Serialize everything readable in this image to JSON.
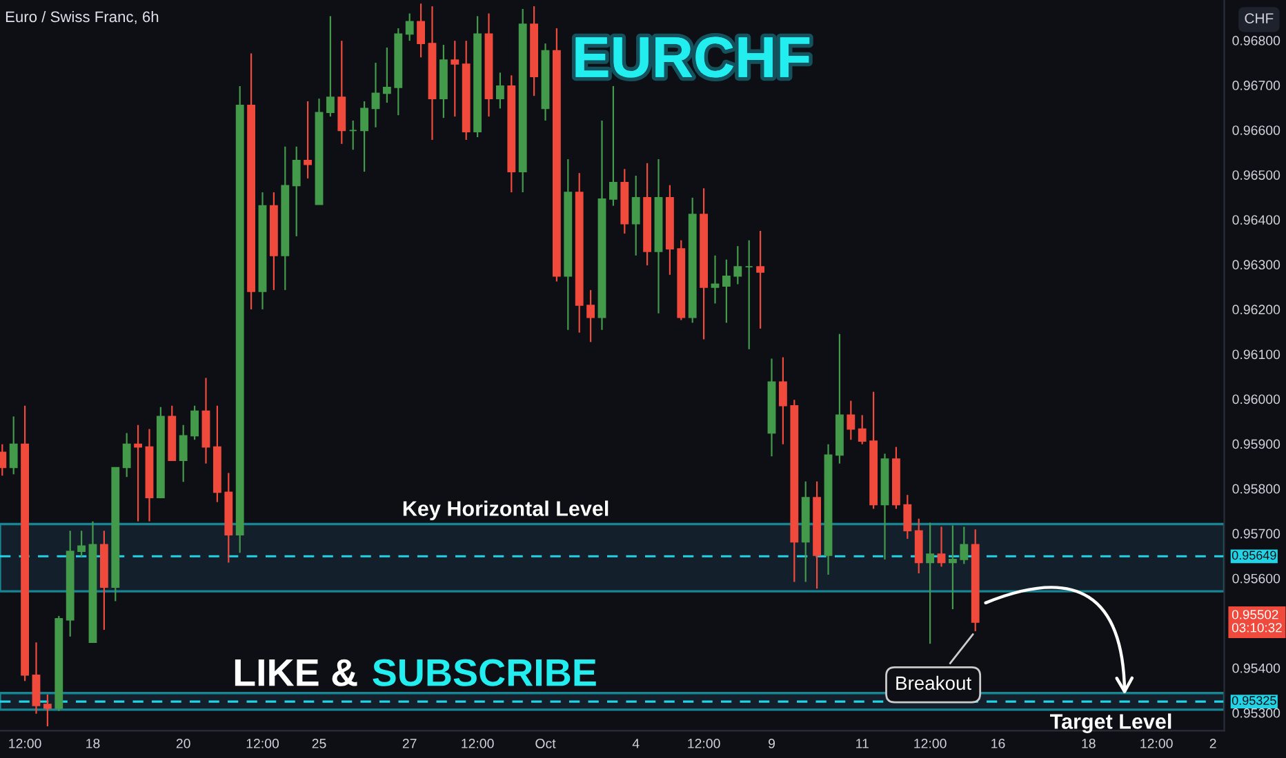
{
  "chart_data": {
    "type": "candlestick",
    "title": "EURCHF",
    "subtitle": "Euro / Swiss Franc, 6h",
    "categories": [
      null,
      null,
      "12:00",
      null,
      null,
      null,
      null,
      null,
      "18",
      null,
      null,
      null,
      null,
      null,
      null,
      null,
      "20",
      null,
      null,
      null,
      null,
      null,
      null,
      "12:00",
      null,
      null,
      null,
      null,
      "25",
      null,
      null,
      null,
      null,
      null,
      null,
      null,
      "27",
      null,
      null,
      null,
      null,
      null,
      "12:00",
      null,
      null,
      null,
      null,
      null,
      "Oct",
      null,
      null,
      null,
      null,
      null,
      null,
      null,
      "4",
      null,
      null,
      null,
      null,
      null,
      "12:00",
      null,
      null,
      null,
      null,
      null,
      "9",
      null,
      null,
      null,
      null,
      null,
      null,
      null,
      "11",
      null,
      null,
      null,
      null,
      null,
      "12:00",
      null,
      null,
      null,
      null,
      null,
      "16",
      null,
      null,
      null,
      null,
      null,
      null,
      null,
      "18",
      null,
      null,
      null,
      null,
      null,
      "12:00",
      null,
      null,
      null,
      null,
      "2",
      null
    ],
    "ohlc": [
      [
        0.95881,
        0.95899,
        0.95829,
        0.95847
      ],
      [
        0.95847,
        0.95961,
        0.95832,
        0.95899
      ],
      [
        0.95899,
        0.95985,
        0.95371,
        0.95384
      ],
      [
        0.95384,
        0.95457,
        0.95298,
        0.95316
      ],
      [
        0.95319,
        0.95341,
        0.9527,
        0.9531
      ],
      [
        0.9531,
        0.95516,
        0.95304,
        0.9551
      ],
      [
        0.95507,
        0.95706,
        0.9547,
        0.9566
      ],
      [
        0.9566,
        0.95706,
        0.95648,
        0.95672
      ],
      [
        0.95457,
        0.95727,
        0.95457,
        0.95675
      ],
      [
        0.95675,
        0.95706,
        0.95485,
        0.9558
      ],
      [
        0.9558,
        0.95847,
        0.95549,
        0.95847
      ],
      [
        0.95847,
        0.95924,
        0.95826,
        0.95899
      ],
      [
        0.95899,
        0.95942,
        0.95727,
        0.95893
      ],
      [
        0.95893,
        0.95933,
        0.95727,
        0.9578
      ],
      [
        0.9578,
        0.95982,
        0.9578,
        0.95961
      ],
      [
        0.95961,
        0.95985,
        0.95863,
        0.95863
      ],
      [
        0.95863,
        0.95942,
        0.95815,
        0.95918
      ],
      [
        0.95918,
        0.95985,
        0.95909,
        0.95973
      ],
      [
        0.95973,
        0.96047,
        0.95856,
        0.95893
      ],
      [
        0.95893,
        0.95985,
        0.9577,
        0.95792
      ],
      [
        0.95792,
        0.95835,
        0.95635,
        0.95697
      ],
      [
        0.95697,
        0.96698,
        0.95657,
        0.96655
      ],
      [
        0.96655,
        0.96771,
        0.962,
        0.9624
      ],
      [
        0.9624,
        0.96461,
        0.962,
        0.96431
      ],
      [
        0.96431,
        0.96461,
        0.96243,
        0.9632
      ],
      [
        0.9632,
        0.96563,
        0.96243,
        0.96476
      ],
      [
        0.96476,
        0.96563,
        0.96363,
        0.96532
      ],
      [
        0.96532,
        0.96664,
        0.96492,
        0.96523
      ],
      [
        0.96434,
        0.9667,
        0.96434,
        0.96639
      ],
      [
        0.96639,
        0.96854,
        0.9663,
        0.96673
      ],
      [
        0.96673,
        0.96799,
        0.96569,
        0.96599
      ],
      [
        0.96599,
        0.96621,
        0.96556,
        0.96599
      ],
      [
        0.96599,
        0.96664,
        0.96507,
        0.96648
      ],
      [
        0.96648,
        0.9675,
        0.96606,
        0.96682
      ],
      [
        0.96682,
        0.96784,
        0.96661,
        0.96695
      ],
      [
        0.96695,
        0.96827,
        0.96633,
        0.96814
      ],
      [
        0.96814,
        0.9686,
        0.96799,
        0.96842
      ],
      [
        0.96842,
        0.96882,
        0.96762,
        0.96793
      ],
      [
        0.96793,
        0.96876,
        0.96578,
        0.9667
      ],
      [
        0.9667,
        0.9679,
        0.96627,
        0.96756
      ],
      [
        0.96756,
        0.96799,
        0.9663,
        0.96747
      ],
      [
        0.96747,
        0.96799,
        0.96578,
        0.96596
      ],
      [
        0.96596,
        0.96854,
        0.96584,
        0.96814
      ],
      [
        0.96814,
        0.9686,
        0.9663,
        0.9667
      ],
      [
        0.9667,
        0.96728,
        0.96648,
        0.96698
      ],
      [
        0.96698,
        0.96722,
        0.96461,
        0.96507
      ],
      [
        0.96507,
        0.9687,
        0.96461,
        0.96836
      ],
      [
        0.96836,
        0.96876,
        0.96676,
        0.96719
      ],
      [
        0.96648,
        0.96793,
        0.96621,
        0.96777
      ],
      [
        0.96777,
        0.96827,
        0.96262,
        0.96274
      ],
      [
        0.96274,
        0.96535,
        0.96154,
        0.96461
      ],
      [
        0.96461,
        0.96504,
        0.96148,
        0.96209
      ],
      [
        0.96209,
        0.96243,
        0.96127,
        0.96182
      ],
      [
        0.96182,
        0.96621,
        0.96154,
        0.96446
      ],
      [
        0.96446,
        0.96698,
        0.96431,
        0.96483
      ],
      [
        0.96483,
        0.96513,
        0.96369,
        0.96391
      ],
      [
        0.96391,
        0.96498,
        0.9632,
        0.96449
      ],
      [
        0.96449,
        0.96526,
        0.96298,
        0.96329
      ],
      [
        0.96329,
        0.96535,
        0.96191,
        0.96449
      ],
      [
        0.96449,
        0.96477,
        0.96277,
        0.96335
      ],
      [
        0.96335,
        0.96354,
        0.96176,
        0.96182
      ],
      [
        0.96182,
        0.96449,
        0.9617,
        0.96412
      ],
      [
        0.96412,
        0.9647,
        0.96133,
        0.96249
      ],
      [
        0.96249,
        0.9632,
        0.96213,
        0.96256
      ],
      [
        0.96252,
        0.96311,
        0.9617,
        0.96274
      ],
      [
        0.96274,
        0.96341,
        0.96256,
        0.96295
      ],
      [
        0.96295,
        0.96354,
        0.96111,
        0.96295
      ],
      [
        0.96295,
        0.96375,
        0.96157,
        0.96283
      ],
      [
        0.95924,
        0.9609,
        0.95872,
        0.96038
      ],
      [
        0.96038,
        0.96093,
        0.95899,
        0.95985
      ],
      [
        0.95985,
        0.95998,
        0.95592,
        0.95681
      ],
      [
        0.95681,
        0.95816,
        0.95592,
        0.9578
      ],
      [
        0.9578,
        0.95816,
        0.95577,
        0.95651
      ],
      [
        0.95651,
        0.95899,
        0.95608,
        0.95875
      ],
      [
        0.95875,
        0.96145,
        0.95856,
        0.95964
      ],
      [
        0.95964,
        0.95996,
        0.95909,
        0.95933
      ],
      [
        0.95933,
        0.95964,
        0.95899,
        0.95906
      ],
      [
        0.95906,
        0.96016,
        0.95755,
        0.95764
      ],
      [
        0.95764,
        0.95878,
        0.95642,
        0.95866
      ],
      [
        0.95866,
        0.95893,
        0.95755,
        0.95764
      ],
      [
        0.95764,
        0.95786,
        0.95688,
        0.95706
      ],
      [
        0.95706,
        0.95733,
        0.95611,
        0.95635
      ],
      [
        0.95635,
        0.95724,
        0.95454,
        0.95654
      ],
      [
        0.95654,
        0.95715,
        0.95626,
        0.95635
      ],
      [
        0.95635,
        0.95718,
        0.95531,
        0.95642
      ],
      [
        0.95642,
        0.95715,
        0.95632,
        0.95675
      ],
      [
        0.95675,
        0.95709,
        0.95482,
        0.95502
      ],
      null,
      null,
      null,
      null,
      null,
      null,
      null,
      null,
      null,
      null,
      null,
      null,
      null,
      null,
      null,
      null,
      null,
      null,
      null,
      null,
      null,
      null
    ],
    "colors": [
      "#f04a3c",
      "#439a4a",
      "#f04a3c",
      "#f04a3c",
      "#f04a3c",
      "#439a4a",
      "#439a4a",
      "#439a4a",
      "#439a4a",
      "#f04a3c",
      "#439a4a",
      "#439a4a",
      "#f04a3c",
      "#f04a3c",
      "#439a4a",
      "#f04a3c",
      "#439a4a",
      "#439a4a",
      "#f04a3c",
      "#f04a3c",
      "#f04a3c",
      "#439a4a",
      "#f04a3c",
      "#439a4a",
      "#f04a3c",
      "#439a4a",
      "#439a4a",
      "#f04a3c",
      "#439a4a",
      "#439a4a",
      "#f04a3c",
      "#439a4a",
      "#439a4a",
      "#439a4a",
      "#439a4a",
      "#439a4a",
      "#439a4a",
      "#f04a3c",
      "#f04a3c",
      "#439a4a",
      "#f04a3c",
      "#f04a3c",
      "#439a4a",
      "#f04a3c",
      "#439a4a",
      "#f04a3c",
      "#439a4a",
      "#f04a3c",
      "#439a4a",
      "#f04a3c",
      "#439a4a",
      "#f04a3c",
      "#f04a3c",
      "#439a4a",
      "#439a4a",
      "#f04a3c",
      "#439a4a",
      "#f04a3c",
      "#439a4a",
      "#f04a3c",
      "#f04a3c",
      "#439a4a",
      "#f04a3c",
      "#439a4a",
      "#439a4a",
      "#439a4a",
      "#439a4a",
      "#f04a3c",
      "#439a4a",
      "#f04a3c",
      "#f04a3c",
      "#439a4a",
      "#f04a3c",
      "#439a4a",
      "#439a4a",
      "#f04a3c",
      "#f04a3c",
      "#f04a3c",
      "#439a4a",
      "#f04a3c",
      "#f04a3c",
      "#f04a3c",
      "#439a4a",
      "#f04a3c",
      "#439a4a",
      "#439a4a",
      "#f04a3c",
      null,
      null,
      null,
      null,
      null,
      null,
      null,
      null,
      null,
      null,
      null,
      null,
      null,
      null,
      null,
      null,
      null,
      null,
      null,
      null,
      null,
      null
    ],
    "ylim": [
      0.9526,
      0.9689
    ],
    "yticks": [
      {
        "value": 0.953,
        "label": "0.95300"
      },
      {
        "value": 0.954,
        "label": "0.95400"
      },
      {
        "value": 0.956,
        "label": "0.95600"
      },
      {
        "value": 0.957,
        "label": "0.95700"
      },
      {
        "value": 0.958,
        "label": "0.95800"
      },
      {
        "value": 0.959,
        "label": "0.95900"
      },
      {
        "value": 0.96,
        "label": "0.96000"
      },
      {
        "value": 0.961,
        "label": "0.96100"
      },
      {
        "value": 0.962,
        "label": "0.96200"
      },
      {
        "value": 0.963,
        "label": "0.96300"
      },
      {
        "value": 0.964,
        "label": "0.96400"
      },
      {
        "value": 0.965,
        "label": "0.96500"
      },
      {
        "value": 0.966,
        "label": "0.96600"
      },
      {
        "value": 0.967,
        "label": "0.96700"
      },
      {
        "value": 0.968,
        "label": "0.96800"
      }
    ],
    "bands": [
      {
        "axis": "y",
        "from": 0.95571,
        "to": 0.95721,
        "label": null,
        "color": "#22d3e6"
      },
      {
        "axis": "y",
        "from": 0.95307,
        "to": 0.95344,
        "label": null,
        "color": "#22d3e6"
      }
    ],
    "ref_lines": [
      {
        "axis": "y",
        "value": 0.95649,
        "label": "0.95649",
        "color": "#22d3e6",
        "line_style": "dashed"
      },
      {
        "axis": "y",
        "value": 0.95325,
        "label": "0.95325",
        "color": "#22d3e6",
        "line_style": "dashed"
      }
    ],
    "annotations": [
      "CHF",
      "LIKE &",
      "SUBSCRIBE",
      {
        "text": "Key Horizontal Level",
        "y": 0.95721
      },
      {
        "text": "Breakout",
        "y": 0.95482
      },
      {
        "text": "Target Level",
        "y": 0.95307
      },
      {
        "text": "0.95502\n03:10:32",
        "y": 0.95502
      }
    ],
    "grid": false,
    "legend": false
  }
}
